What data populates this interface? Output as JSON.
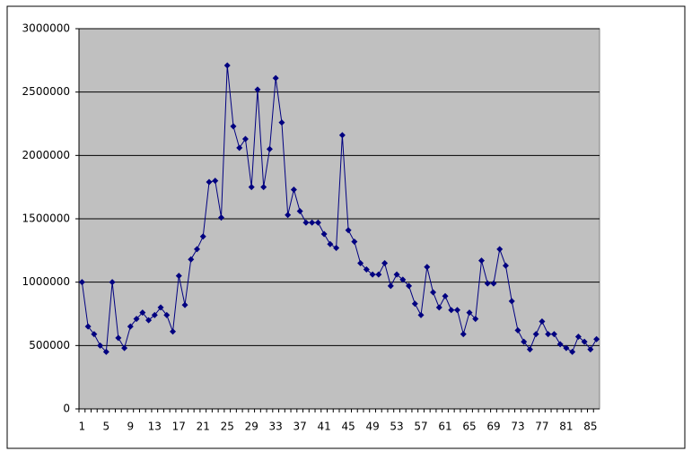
{
  "chart_data": {
    "type": "line",
    "categories": [
      "1",
      null,
      null,
      null,
      "5",
      null,
      null,
      null,
      "9",
      null,
      null,
      null,
      "13",
      null,
      null,
      null,
      "17",
      null,
      null,
      null,
      "21",
      null,
      null,
      null,
      "25",
      null,
      null,
      null,
      "29",
      null,
      null,
      null,
      "33",
      null,
      null,
      null,
      "37",
      null,
      null,
      null,
      "41",
      null,
      null,
      null,
      "45",
      null,
      null,
      null,
      "49",
      null,
      null,
      null,
      "53",
      null,
      null,
      null,
      "57",
      null,
      null,
      null,
      "61",
      null,
      null,
      null,
      "65",
      null,
      null,
      null,
      "69",
      null,
      null,
      null,
      "73",
      null,
      null,
      null,
      "77",
      null,
      null,
      null,
      "81",
      null,
      null,
      null,
      "85",
      null
    ],
    "values": [
      1000000,
      650000,
      590000,
      500000,
      450000,
      1000000,
      560000,
      480000,
      650000,
      710000,
      760000,
      700000,
      740000,
      800000,
      740000,
      610000,
      1050000,
      820000,
      1180000,
      1260000,
      1360000,
      1790000,
      1800000,
      1510000,
      2710000,
      2230000,
      2060000,
      2130000,
      1750000,
      2520000,
      1750000,
      2050000,
      2610000,
      2260000,
      1530000,
      1730000,
      1560000,
      1470000,
      1470000,
      1470000,
      1380000,
      1300000,
      1270000,
      2160000,
      1410000,
      1320000,
      1150000,
      1100000,
      1060000,
      1060000,
      1150000,
      970000,
      1060000,
      1020000,
      970000,
      830000,
      740000,
      1120000,
      920000,
      800000,
      890000,
      780000,
      780000,
      590000,
      760000,
      710000,
      1170000,
      990000,
      990000,
      1260000,
      1130000,
      850000,
      620000,
      530000,
      470000,
      590000,
      690000,
      590000,
      590000,
      510000,
      480000,
      450000,
      570000,
      530000,
      470000,
      550000
    ],
    "color": "#000080",
    "ylim": [
      0,
      3000000
    ],
    "yticks": [
      0,
      500000,
      1000000,
      1500000,
      2000000,
      2500000,
      3000000
    ],
    "grid": true
  }
}
